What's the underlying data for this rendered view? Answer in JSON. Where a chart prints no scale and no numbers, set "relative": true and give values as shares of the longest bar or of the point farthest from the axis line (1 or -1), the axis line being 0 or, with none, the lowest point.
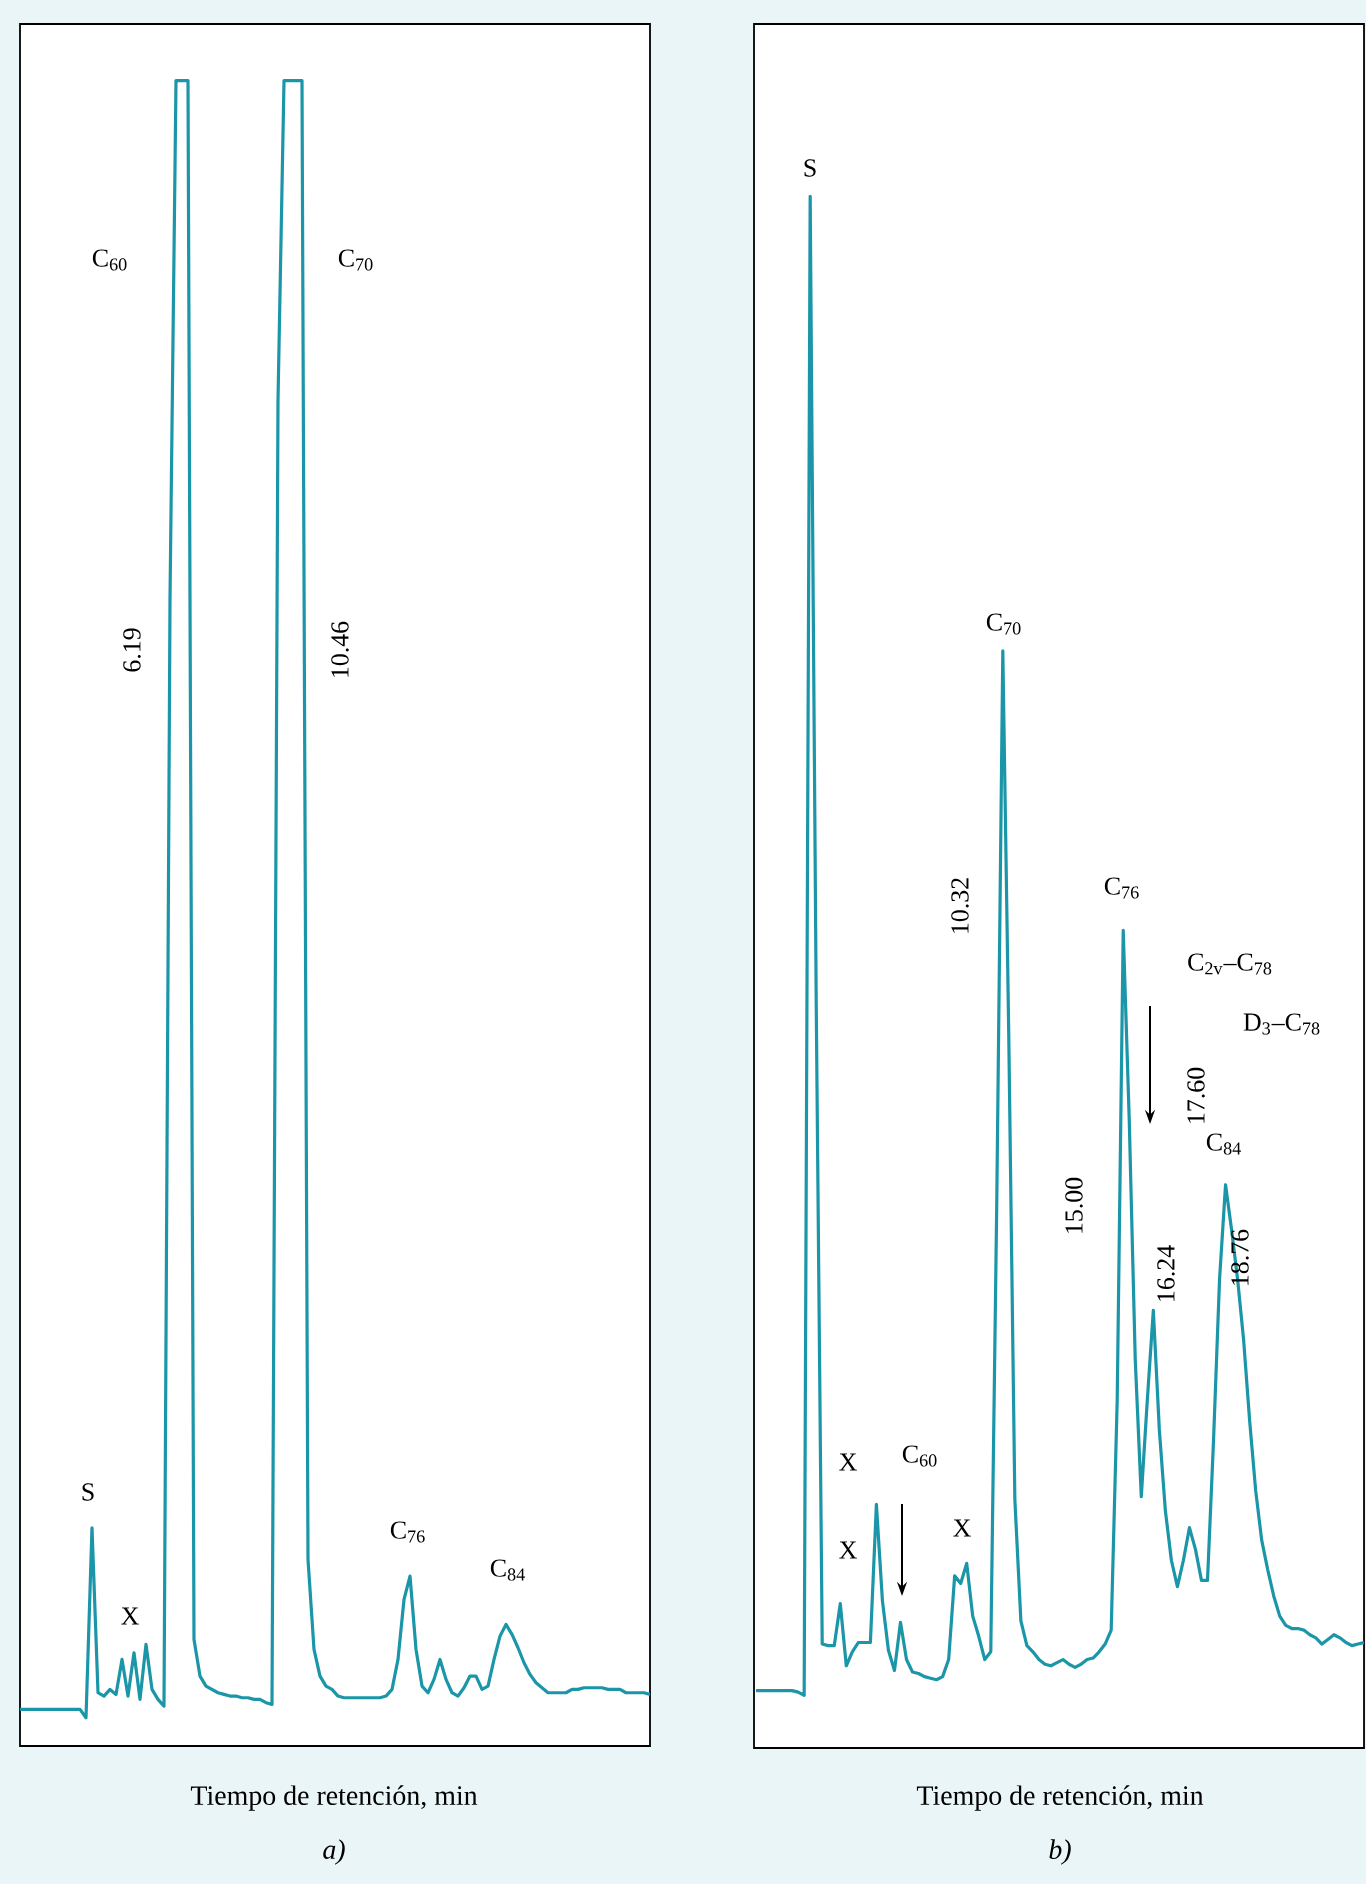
{
  "chart_data": [
    {
      "type": "line",
      "relative": true,
      "title": "a)",
      "xlabel": "Tiempo de retención, min",
      "categories": [
        null,
        null,
        null,
        null,
        null,
        null,
        null,
        null,
        null,
        null,
        null,
        null,
        null,
        null,
        null,
        null,
        null,
        null,
        null,
        null,
        null,
        null,
        null,
        null,
        null,
        null,
        null,
        null,
        null,
        null,
        null,
        null,
        null,
        null,
        null,
        null,
        null,
        null,
        null,
        null,
        null,
        null,
        null,
        null,
        null,
        null,
        null,
        null,
        null,
        null,
        null,
        null,
        null,
        null,
        null,
        null,
        null,
        null,
        null,
        null,
        null,
        null,
        null,
        null,
        null,
        null,
        null,
        null,
        null,
        null,
        null,
        null,
        null,
        null,
        null,
        null,
        null,
        null,
        null,
        null,
        null,
        null,
        null,
        null,
        null,
        null,
        null,
        null,
        null,
        null,
        null,
        null,
        null,
        null,
        null,
        null,
        null,
        null,
        null,
        null,
        null,
        null,
        null,
        null,
        null,
        null
      ],
      "series": [
        {
          "color": "#1b96a8",
          "values": [
            0.022,
            0.022,
            0.022,
            0.022,
            0.022,
            0.022,
            0.022,
            0.022,
            0.022,
            0.022,
            0.022,
            0.017,
            0.131,
            0.032,
            0.03,
            0.034,
            0.031,
            0.052,
            0.03,
            0.056,
            0.028,
            0.061,
            0.034,
            0.028,
            0.024,
            0.688,
            1,
            1,
            1,
            0.064,
            0.042,
            0.036,
            0.034,
            0.032,
            0.031,
            0.03,
            0.03,
            0.029,
            0.029,
            0.028,
            0.028,
            0.026,
            0.025,
            0.808,
            1,
            1,
            1,
            1,
            0.112,
            0.058,
            0.042,
            0.036,
            0.034,
            0.03,
            0.029,
            0.029,
            0.029,
            0.029,
            0.029,
            0.029,
            0.029,
            0.03,
            0.034,
            0.052,
            0.088,
            0.102,
            0.058,
            0.036,
            0.032,
            0.04,
            0.052,
            0.04,
            0.032,
            0.03,
            0.035,
            0.042,
            0.042,
            0.034,
            0.036,
            0.052,
            0.066,
            0.073,
            0.067,
            0.059,
            0.05,
            0.043,
            0.038,
            0.035,
            0.032,
            0.032,
            0.032,
            0.032,
            0.034,
            0.034,
            0.035,
            0.035,
            0.035,
            0.035,
            0.034,
            0.034,
            0.034,
            0.032,
            0.032,
            0.032,
            0.032,
            0.031
          ]
        }
      ],
      "annotations": [
        "S",
        "X",
        "C$_{60}$",
        "C$_{70}$",
        "6.19",
        "10.46",
        "C$_{76}$",
        "C$_{84}$"
      ]
    },
    {
      "type": "line",
      "relative": true,
      "title": "b)",
      "xlabel": "Tiempo de retención, min",
      "categories": [
        null,
        null,
        null,
        null,
        null,
        null,
        null,
        null,
        null,
        null,
        null,
        null,
        null,
        null,
        null,
        null,
        null,
        null,
        null,
        null,
        null,
        null,
        null,
        null,
        null,
        null,
        null,
        null,
        null,
        null,
        null,
        null,
        null,
        null,
        null,
        null,
        null,
        null,
        null,
        null,
        null,
        null,
        null,
        null,
        null,
        null,
        null,
        null,
        null,
        null,
        null,
        null,
        null,
        null,
        null,
        null,
        null,
        null,
        null,
        null,
        null,
        null,
        null,
        null,
        null,
        null,
        null,
        null,
        null,
        null,
        null,
        null,
        null,
        null,
        null,
        null,
        null,
        null,
        null,
        null,
        null,
        null,
        null,
        null,
        null,
        null,
        null,
        null,
        null,
        null,
        null,
        null,
        null,
        null,
        null,
        null,
        null,
        null,
        null,
        null,
        null,
        null
      ],
      "series": [
        {
          "color": "#1b96a8",
          "values": [
            0.037,
            0.037,
            0.037,
            0.037,
            0.037,
            0.037,
            0.037,
            0.036,
            0.034,
            1,
            0.482,
            0.067,
            0.066,
            0.066,
            0.093,
            0.053,
            0.062,
            0.068,
            0.068,
            0.068,
            0.157,
            0.095,
            0.063,
            0.05,
            0.081,
            0.057,
            0.049,
            0.048,
            0.046,
            0.045,
            0.044,
            0.046,
            0.057,
            0.111,
            0.106,
            0.119,
            0.085,
            0.072,
            0.057,
            0.062,
            0.353,
            0.707,
            0.456,
            0.16,
            0.082,
            0.066,
            0.062,
            0.057,
            0.054,
            0.053,
            0.055,
            0.057,
            0.054,
            0.052,
            0.054,
            0.057,
            0.058,
            0.062,
            0.067,
            0.076,
            0.224,
            0.527,
            0.405,
            0.25,
            0.162,
            0.224,
            0.282,
            0.205,
            0.153,
            0.121,
            0.104,
            0.121,
            0.142,
            0.128,
            0.108,
            0.108,
            0.198,
            0.302,
            0.363,
            0.334,
            0.302,
            0.263,
            0.211,
            0.166,
            0.134,
            0.115,
            0.098,
            0.085,
            0.079,
            0.077,
            0.077,
            0.076,
            0.073,
            0.071,
            0.067,
            0.07,
            0.073,
            0.071,
            0.068,
            0.066,
            0.067,
            0.068
          ]
        }
      ],
      "annotations": [
        "S",
        "C$_{70}$",
        "10.32",
        "C$_{76}$",
        "C$_{2v}$–C$_{78}$",
        "D$_{3}$–C$_{78}$",
        "17.60",
        "15.00",
        "16.24",
        "C$_{84}$",
        "18.76",
        "X",
        "X",
        "C$_{60}$",
        "X"
      ]
    }
  ]
}
